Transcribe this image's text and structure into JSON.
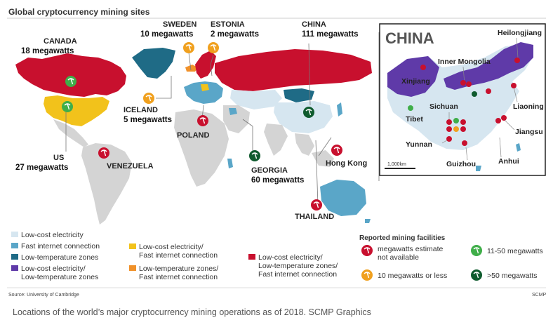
{
  "title": "Global cryptocurrency mining sites",
  "countries": [
    {
      "id": "canada",
      "name": "CANADA",
      "value": "18 megawatts",
      "marker": "green",
      "has_value": true
    },
    {
      "id": "sweden",
      "name": "SWEDEN",
      "value": "10 megawatts",
      "marker": "orange",
      "has_value": true
    },
    {
      "id": "estonia",
      "name": "ESTONIA",
      "value": "2 megawatts",
      "marker": "orange",
      "has_value": true
    },
    {
      "id": "china",
      "name": "CHINA",
      "value": "111 megawatts",
      "marker": "darkgreen",
      "has_value": true
    },
    {
      "id": "iceland",
      "name": "ICELAND",
      "value": "5 megawatts",
      "marker": "orange",
      "has_value": true
    },
    {
      "id": "poland",
      "name": "POLAND",
      "value": "",
      "marker": "red",
      "has_value": false
    },
    {
      "id": "us",
      "name": "US",
      "value": "27 megawatts",
      "marker": "green",
      "has_value": true
    },
    {
      "id": "venezuela",
      "name": "VENEZUELA",
      "value": "",
      "marker": "red",
      "has_value": false
    },
    {
      "id": "georgia",
      "name": "GEORGIA",
      "value": "60 megawatts",
      "marker": "darkgreen",
      "has_value": true
    },
    {
      "id": "hongkong",
      "name": "Hong Kong",
      "value": "",
      "marker": "red",
      "has_value": false
    },
    {
      "id": "thailand",
      "name": "THAILAND",
      "value": "",
      "marker": "red",
      "has_value": false
    }
  ],
  "china_inset": {
    "title": "CHINA",
    "provinces": [
      "Heilongjiang",
      "Inner Mongolia",
      "Xinjiang",
      "Liaoning",
      "Sichuan",
      "Tibet",
      "Jiangsu",
      "Yunnan",
      "Guizhou",
      "Anhui"
    ],
    "scale_label": "1,000km"
  },
  "legend": {
    "zones": [
      {
        "label": "Low-cost electricity",
        "color": "#d6e6f0"
      },
      {
        "label": "Fast internet connection",
        "color": "#5aa6c8"
      },
      {
        "label": "Low-temperature zones",
        "color": "#1f6b86"
      },
      {
        "label": "Low-cost electricity/",
        "label2": "Low-temperature zones",
        "color": "#5f3aa8"
      },
      {
        "label": "Low-cost electricity/",
        "label2": "Fast internet connection",
        "color": "#f2c21b"
      },
      {
        "label": "Low-temperature zones/",
        "label2": "Fast internet connection",
        "color": "#f0912a"
      },
      {
        "label": "Low-cost electricity/",
        "label2": "Low-temperature zones/",
        "label3": "Fast internet connection",
        "color": "#c8102e"
      }
    ],
    "facilities_heading": "Reported mining facilities",
    "facilities": [
      {
        "label": "megawatts estimate",
        "label2": "not available",
        "color": "#c8102e"
      },
      {
        "label": "11-50 megawatts",
        "label2": "",
        "color": "#3fae49"
      },
      {
        "label": "10 megawatts or less",
        "label2": "",
        "color": "#f0a01e"
      },
      {
        "label": ">50 megawatts",
        "label2": "",
        "color": "#0f5b2e"
      }
    ]
  },
  "source": "Source: University of Cambridge",
  "credit": "SCMP",
  "caption": "Locations of the world’s major cryptocurrency mining operations as of 2018. SCMP Graphics"
}
